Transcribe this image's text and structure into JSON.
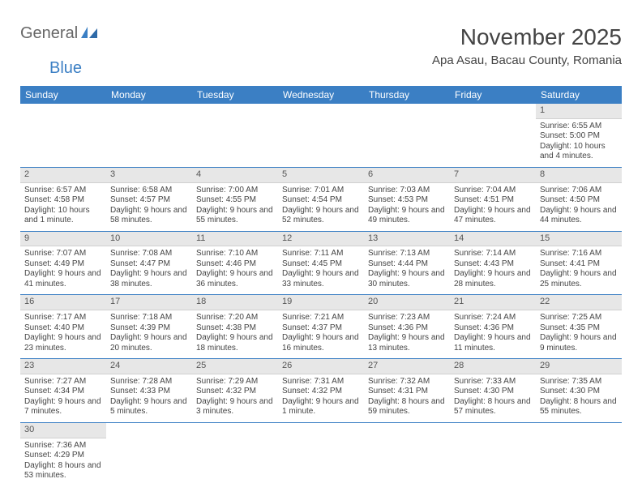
{
  "logo": {
    "text1": "General",
    "text2": "Blue"
  },
  "title": {
    "month": "November 2025",
    "location": "Apa Asau, Bacau County, Romania"
  },
  "colors": {
    "header_bg": "#3b7fc4",
    "daynum_bg": "#e7e7e7",
    "rule": "#3b7fc4",
    "text": "#444444",
    "page_bg": "#ffffff"
  },
  "calendar": {
    "type": "calendar-table",
    "columns": [
      "Sunday",
      "Monday",
      "Tuesday",
      "Wednesday",
      "Thursday",
      "Friday",
      "Saturday"
    ],
    "first_weekday_index": 6,
    "days": [
      {
        "n": 1,
        "sunrise": "6:55 AM",
        "sunset": "5:00 PM",
        "daylight": "10 hours and 4 minutes."
      },
      {
        "n": 2,
        "sunrise": "6:57 AM",
        "sunset": "4:58 PM",
        "daylight": "10 hours and 1 minute."
      },
      {
        "n": 3,
        "sunrise": "6:58 AM",
        "sunset": "4:57 PM",
        "daylight": "9 hours and 58 minutes."
      },
      {
        "n": 4,
        "sunrise": "7:00 AM",
        "sunset": "4:55 PM",
        "daylight": "9 hours and 55 minutes."
      },
      {
        "n": 5,
        "sunrise": "7:01 AM",
        "sunset": "4:54 PM",
        "daylight": "9 hours and 52 minutes."
      },
      {
        "n": 6,
        "sunrise": "7:03 AM",
        "sunset": "4:53 PM",
        "daylight": "9 hours and 49 minutes."
      },
      {
        "n": 7,
        "sunrise": "7:04 AM",
        "sunset": "4:51 PM",
        "daylight": "9 hours and 47 minutes."
      },
      {
        "n": 8,
        "sunrise": "7:06 AM",
        "sunset": "4:50 PM",
        "daylight": "9 hours and 44 minutes."
      },
      {
        "n": 9,
        "sunrise": "7:07 AM",
        "sunset": "4:49 PM",
        "daylight": "9 hours and 41 minutes."
      },
      {
        "n": 10,
        "sunrise": "7:08 AM",
        "sunset": "4:47 PM",
        "daylight": "9 hours and 38 minutes."
      },
      {
        "n": 11,
        "sunrise": "7:10 AM",
        "sunset": "4:46 PM",
        "daylight": "9 hours and 36 minutes."
      },
      {
        "n": 12,
        "sunrise": "7:11 AM",
        "sunset": "4:45 PM",
        "daylight": "9 hours and 33 minutes."
      },
      {
        "n": 13,
        "sunrise": "7:13 AM",
        "sunset": "4:44 PM",
        "daylight": "9 hours and 30 minutes."
      },
      {
        "n": 14,
        "sunrise": "7:14 AM",
        "sunset": "4:43 PM",
        "daylight": "9 hours and 28 minutes."
      },
      {
        "n": 15,
        "sunrise": "7:16 AM",
        "sunset": "4:41 PM",
        "daylight": "9 hours and 25 minutes."
      },
      {
        "n": 16,
        "sunrise": "7:17 AM",
        "sunset": "4:40 PM",
        "daylight": "9 hours and 23 minutes."
      },
      {
        "n": 17,
        "sunrise": "7:18 AM",
        "sunset": "4:39 PM",
        "daylight": "9 hours and 20 minutes."
      },
      {
        "n": 18,
        "sunrise": "7:20 AM",
        "sunset": "4:38 PM",
        "daylight": "9 hours and 18 minutes."
      },
      {
        "n": 19,
        "sunrise": "7:21 AM",
        "sunset": "4:37 PM",
        "daylight": "9 hours and 16 minutes."
      },
      {
        "n": 20,
        "sunrise": "7:23 AM",
        "sunset": "4:36 PM",
        "daylight": "9 hours and 13 minutes."
      },
      {
        "n": 21,
        "sunrise": "7:24 AM",
        "sunset": "4:36 PM",
        "daylight": "9 hours and 11 minutes."
      },
      {
        "n": 22,
        "sunrise": "7:25 AM",
        "sunset": "4:35 PM",
        "daylight": "9 hours and 9 minutes."
      },
      {
        "n": 23,
        "sunrise": "7:27 AM",
        "sunset": "4:34 PM",
        "daylight": "9 hours and 7 minutes."
      },
      {
        "n": 24,
        "sunrise": "7:28 AM",
        "sunset": "4:33 PM",
        "daylight": "9 hours and 5 minutes."
      },
      {
        "n": 25,
        "sunrise": "7:29 AM",
        "sunset": "4:32 PM",
        "daylight": "9 hours and 3 minutes."
      },
      {
        "n": 26,
        "sunrise": "7:31 AM",
        "sunset": "4:32 PM",
        "daylight": "9 hours and 1 minute."
      },
      {
        "n": 27,
        "sunrise": "7:32 AM",
        "sunset": "4:31 PM",
        "daylight": "8 hours and 59 minutes."
      },
      {
        "n": 28,
        "sunrise": "7:33 AM",
        "sunset": "4:30 PM",
        "daylight": "8 hours and 57 minutes."
      },
      {
        "n": 29,
        "sunrise": "7:35 AM",
        "sunset": "4:30 PM",
        "daylight": "8 hours and 55 minutes."
      },
      {
        "n": 30,
        "sunrise": "7:36 AM",
        "sunset": "4:29 PM",
        "daylight": "8 hours and 53 minutes."
      }
    ],
    "labels": {
      "sunrise": "Sunrise:",
      "sunset": "Sunset:",
      "daylight": "Daylight:"
    }
  }
}
